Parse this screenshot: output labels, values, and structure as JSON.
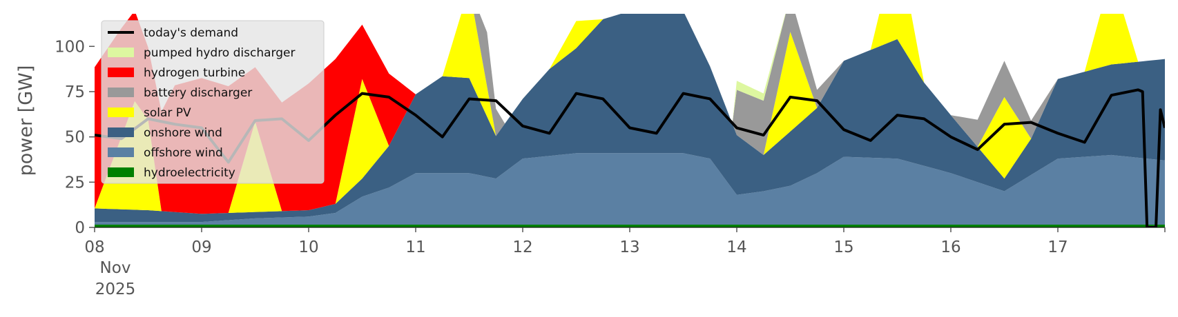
{
  "chart_data": {
    "type": "area",
    "title": "",
    "xlabel": "",
    "ylabel": "power [GW]",
    "ylim": [
      0,
      118
    ],
    "xlim": [
      "2025-11-08T00:00",
      "2025-11-18T00:00"
    ],
    "x_ticks": [
      {
        "date": "2025-11-08",
        "label": "08",
        "sub": [
          "Nov",
          "2025"
        ]
      },
      {
        "date": "2025-11-09",
        "label": "09",
        "sub": []
      },
      {
        "date": "2025-11-10",
        "label": "10",
        "sub": []
      },
      {
        "date": "2025-11-11",
        "label": "11",
        "sub": []
      },
      {
        "date": "2025-11-12",
        "label": "12",
        "sub": []
      },
      {
        "date": "2025-11-13",
        "label": "13",
        "sub": []
      },
      {
        "date": "2025-11-14",
        "label": "14",
        "sub": []
      },
      {
        "date": "2025-11-15",
        "label": "15",
        "sub": []
      },
      {
        "date": "2025-11-16",
        "label": "16",
        "sub": []
      },
      {
        "date": "2025-11-17",
        "label": "17",
        "sub": []
      }
    ],
    "y_ticks": [
      0,
      25,
      50,
      75,
      100
    ],
    "grid": false,
    "stacked": true,
    "legend_position": "top-left",
    "series": [
      {
        "name": "hydroelectricity",
        "color": "#008000",
        "kind": "area",
        "points": [
          [
            "2025-11-08T00:00",
            1.5
          ],
          [
            "2025-11-10T00:00",
            1.5
          ],
          [
            "2025-11-11T00:00",
            1.5
          ],
          [
            "2025-11-12T00:00",
            1.5
          ],
          [
            "2025-11-13T00:00",
            1.5
          ],
          [
            "2025-11-14T00:00",
            1.5
          ],
          [
            "2025-11-15T00:00",
            1.5
          ],
          [
            "2025-11-16T00:00",
            1.5
          ],
          [
            "2025-11-17T00:00",
            1.5
          ],
          [
            "2025-11-18T00:00",
            1.5
          ]
        ]
      },
      {
        "name": "offshore wind",
        "color": "#5b80a3",
        "kind": "area",
        "points": [
          [
            "2025-11-08T00:00",
            1.5
          ],
          [
            "2025-11-08T12:00",
            1.5
          ],
          [
            "2025-11-09T00:00",
            1.5
          ],
          [
            "2025-11-09T12:00",
            3.5
          ],
          [
            "2025-11-10T00:00",
            4.5
          ],
          [
            "2025-11-10T06:00",
            6.5
          ],
          [
            "2025-11-10T12:00",
            15.5
          ],
          [
            "2025-11-10T18:00",
            20.5
          ],
          [
            "2025-11-11T00:00",
            28.5
          ],
          [
            "2025-11-11T06:00",
            28.5
          ],
          [
            "2025-11-11T12:00",
            28.5
          ],
          [
            "2025-11-11T18:00",
            25.5
          ],
          [
            "2025-11-12T00:00",
            36.5
          ],
          [
            "2025-11-12T12:00",
            39.5
          ],
          [
            "2025-11-13T00:00",
            39.5
          ],
          [
            "2025-11-13T12:00",
            39.5
          ],
          [
            "2025-11-13T18:00",
            36.5
          ],
          [
            "2025-11-14T00:00",
            16.5
          ],
          [
            "2025-11-14T06:00",
            18.5
          ],
          [
            "2025-11-14T12:00",
            21.5
          ],
          [
            "2025-11-14T18:00",
            28.5
          ],
          [
            "2025-11-15T00:00",
            37.5
          ],
          [
            "2025-11-15T12:00",
            36.5
          ],
          [
            "2025-11-16T00:00",
            28.5
          ],
          [
            "2025-11-16T12:00",
            18.5
          ],
          [
            "2025-11-17T00:00",
            36.5
          ],
          [
            "2025-11-17T12:00",
            38.5
          ],
          [
            "2025-11-18T00:00",
            35.5
          ]
        ]
      },
      {
        "name": "onshore wind",
        "color": "#3b6083",
        "kind": "area",
        "points": [
          [
            "2025-11-08T00:00",
            7.5
          ],
          [
            "2025-11-08T12:00",
            6.5
          ],
          [
            "2025-11-09T00:00",
            4.5
          ],
          [
            "2025-11-09T12:00",
            3.5
          ],
          [
            "2025-11-10T00:00",
            3.5
          ],
          [
            "2025-11-10T06:00",
            5
          ],
          [
            "2025-11-10T12:00",
            10
          ],
          [
            "2025-11-10T18:00",
            23
          ],
          [
            "2025-11-11T00:00",
            43.5
          ],
          [
            "2025-11-11T06:00",
            53.5
          ],
          [
            "2025-11-11T12:00",
            52.5
          ],
          [
            "2025-11-11T18:00",
            23.5
          ],
          [
            "2025-11-12T00:00",
            33
          ],
          [
            "2025-11-12T06:00",
            48
          ],
          [
            "2025-11-12T12:00",
            58
          ],
          [
            "2025-11-12T18:00",
            74
          ],
          [
            "2025-11-13T00:00",
            78.5
          ],
          [
            "2025-11-13T12:00",
            78.5
          ],
          [
            "2025-11-13T18:00",
            51
          ],
          [
            "2025-11-14T00:00",
            33
          ],
          [
            "2025-11-14T06:00",
            20
          ],
          [
            "2025-11-14T12:00",
            30
          ],
          [
            "2025-11-14T18:00",
            36
          ],
          [
            "2025-11-15T00:00",
            53
          ],
          [
            "2025-11-15T12:00",
            66
          ],
          [
            "2025-11-15T18:00",
            46
          ],
          [
            "2025-11-16T00:00",
            32
          ],
          [
            "2025-11-16T12:00",
            7
          ],
          [
            "2025-11-16T18:00",
            20
          ],
          [
            "2025-11-17T00:00",
            44
          ],
          [
            "2025-11-17T12:00",
            50
          ],
          [
            "2025-11-18T00:00",
            56
          ]
        ]
      },
      {
        "name": "solar PV",
        "color": "#ffff00",
        "kind": "area",
        "points": [
          [
            "2025-11-08T00:00",
            0
          ],
          [
            "2025-11-08T09:00",
            60
          ],
          [
            "2025-11-08T12:00",
            50
          ],
          [
            "2025-11-08T15:00",
            0
          ],
          [
            "2025-11-09T06:00",
            0
          ],
          [
            "2025-11-09T12:00",
            50
          ],
          [
            "2025-11-09T18:00",
            0
          ],
          [
            "2025-11-10T06:00",
            0
          ],
          [
            "2025-11-10T12:00",
            55
          ],
          [
            "2025-11-10T18:00",
            0
          ],
          [
            "2025-11-11T06:00",
            0
          ],
          [
            "2025-11-11T12:00",
            50
          ],
          [
            "2025-11-11T18:00",
            0
          ],
          [
            "2025-11-12T06:00",
            0
          ],
          [
            "2025-11-12T12:00",
            15
          ],
          [
            "2025-11-12T18:00",
            0
          ],
          [
            "2025-11-14T06:00",
            0
          ],
          [
            "2025-11-14T12:00",
            55
          ],
          [
            "2025-11-14T18:00",
            0
          ],
          [
            "2025-11-15T06:00",
            0
          ],
          [
            "2025-11-15T12:00",
            55
          ],
          [
            "2025-11-15T18:00",
            0
          ],
          [
            "2025-11-16T06:00",
            0
          ],
          [
            "2025-11-16T12:00",
            45
          ],
          [
            "2025-11-16T18:00",
            0
          ],
          [
            "2025-11-17T06:00",
            0
          ],
          [
            "2025-11-17T12:00",
            50
          ],
          [
            "2025-11-17T18:00",
            0
          ],
          [
            "2025-11-18T00:00",
            0
          ]
        ]
      },
      {
        "name": "battery discharger",
        "color": "#999999",
        "kind": "area",
        "points": [
          [
            "2025-11-08T00:00",
            0
          ],
          [
            "2025-11-11T12:00",
            0
          ],
          [
            "2025-11-11T16:00",
            30
          ],
          [
            "2025-11-11T20:00",
            0
          ],
          [
            "2025-11-13T23:00",
            0
          ],
          [
            "2025-11-14T00:00",
            25
          ],
          [
            "2025-11-14T06:00",
            30
          ],
          [
            "2025-11-14T12:00",
            20
          ],
          [
            "2025-11-14T18:00",
            10
          ],
          [
            "2025-11-15T00:00",
            0
          ],
          [
            "2025-11-16T00:00",
            0
          ],
          [
            "2025-11-16T06:00",
            15
          ],
          [
            "2025-11-16T12:00",
            20
          ],
          [
            "2025-11-16T18:00",
            10
          ],
          [
            "2025-11-17T00:00",
            0
          ],
          [
            "2025-11-18T00:00",
            0
          ]
        ]
      },
      {
        "name": "hydrogen turbine",
        "color": "#ff0000",
        "kind": "area",
        "points": [
          [
            "2025-11-08T00:00",
            78
          ],
          [
            "2025-11-08T06:00",
            60
          ],
          [
            "2025-11-08T12:00",
            40
          ],
          [
            "2025-11-08T18:00",
            70
          ],
          [
            "2025-11-09T00:00",
            75
          ],
          [
            "2025-11-09T06:00",
            70
          ],
          [
            "2025-11-09T12:00",
            30
          ],
          [
            "2025-11-09T18:00",
            60
          ],
          [
            "2025-11-10T00:00",
            70
          ],
          [
            "2025-11-10T06:00",
            80
          ],
          [
            "2025-11-10T12:00",
            30
          ],
          [
            "2025-11-10T18:00",
            40
          ],
          [
            "2025-11-11T00:00",
            0
          ],
          [
            "2025-11-18T00:00",
            0
          ]
        ]
      },
      {
        "name": "pumped hydro discharger",
        "color": "#ddf7a0",
        "kind": "area",
        "points": [
          [
            "2025-11-08T00:00",
            0
          ],
          [
            "2025-11-13T23:00",
            0
          ],
          [
            "2025-11-14T00:00",
            5
          ],
          [
            "2025-11-14T06:00",
            4
          ],
          [
            "2025-11-14T12:00",
            0
          ],
          [
            "2025-11-18T00:00",
            0
          ]
        ]
      },
      {
        "name": "today's demand",
        "color": "#000000",
        "kind": "line",
        "points": [
          [
            "2025-11-08T00:00",
            51
          ],
          [
            "2025-11-08T06:00",
            49
          ],
          [
            "2025-11-08T12:00",
            60
          ],
          [
            "2025-11-08T18:00",
            57
          ],
          [
            "2025-11-09T00:00",
            55
          ],
          [
            "2025-11-09T06:00",
            36
          ],
          [
            "2025-11-09T12:00",
            59
          ],
          [
            "2025-11-09T18:00",
            60
          ],
          [
            "2025-11-10T00:00",
            48
          ],
          [
            "2025-11-10T06:00",
            62
          ],
          [
            "2025-11-10T12:00",
            74
          ],
          [
            "2025-11-10T18:00",
            72
          ],
          [
            "2025-11-11T00:00",
            62
          ],
          [
            "2025-11-11T06:00",
            50
          ],
          [
            "2025-11-11T12:00",
            71
          ],
          [
            "2025-11-11T18:00",
            70
          ],
          [
            "2025-11-12T00:00",
            56
          ],
          [
            "2025-11-12T06:00",
            52
          ],
          [
            "2025-11-12T12:00",
            74
          ],
          [
            "2025-11-12T18:00",
            71
          ],
          [
            "2025-11-13T00:00",
            55
          ],
          [
            "2025-11-13T06:00",
            52
          ],
          [
            "2025-11-13T12:00",
            74
          ],
          [
            "2025-11-13T18:00",
            71
          ],
          [
            "2025-11-14T00:00",
            55
          ],
          [
            "2025-11-14T06:00",
            51
          ],
          [
            "2025-11-14T12:00",
            72
          ],
          [
            "2025-11-14T18:00",
            70
          ],
          [
            "2025-11-15T00:00",
            54
          ],
          [
            "2025-11-15T06:00",
            48
          ],
          [
            "2025-11-15T12:00",
            62
          ],
          [
            "2025-11-15T18:00",
            60
          ],
          [
            "2025-11-16T00:00",
            50
          ],
          [
            "2025-11-16T06:00",
            43
          ],
          [
            "2025-11-16T12:00",
            57
          ],
          [
            "2025-11-16T18:00",
            58
          ],
          [
            "2025-11-17T00:00",
            52
          ],
          [
            "2025-11-17T06:00",
            47
          ],
          [
            "2025-11-17T12:00",
            73
          ],
          [
            "2025-11-17T18:00",
            76
          ],
          [
            "2025-11-17T19:00",
            75
          ],
          [
            "2025-11-17T20:00",
            0
          ],
          [
            "2025-11-17T22:00",
            0
          ],
          [
            "2025-11-17T23:00",
            65
          ],
          [
            "2025-11-18T00:00",
            55
          ]
        ]
      }
    ],
    "legend": [
      {
        "label": "today's demand",
        "color": "#000000",
        "kind": "line"
      },
      {
        "label": "pumped hydro discharger",
        "color": "#ddf7a0",
        "kind": "patch"
      },
      {
        "label": "hydrogen turbine",
        "color": "#ff0000",
        "kind": "patch"
      },
      {
        "label": "battery discharger",
        "color": "#999999",
        "kind": "patch"
      },
      {
        "label": "solar PV",
        "color": "#ffff00",
        "kind": "patch"
      },
      {
        "label": "onshore wind",
        "color": "#3b6083",
        "kind": "patch"
      },
      {
        "label": "offshore wind",
        "color": "#5b80a3",
        "kind": "patch"
      },
      {
        "label": "hydroelectricity",
        "color": "#008000",
        "kind": "patch"
      }
    ]
  }
}
